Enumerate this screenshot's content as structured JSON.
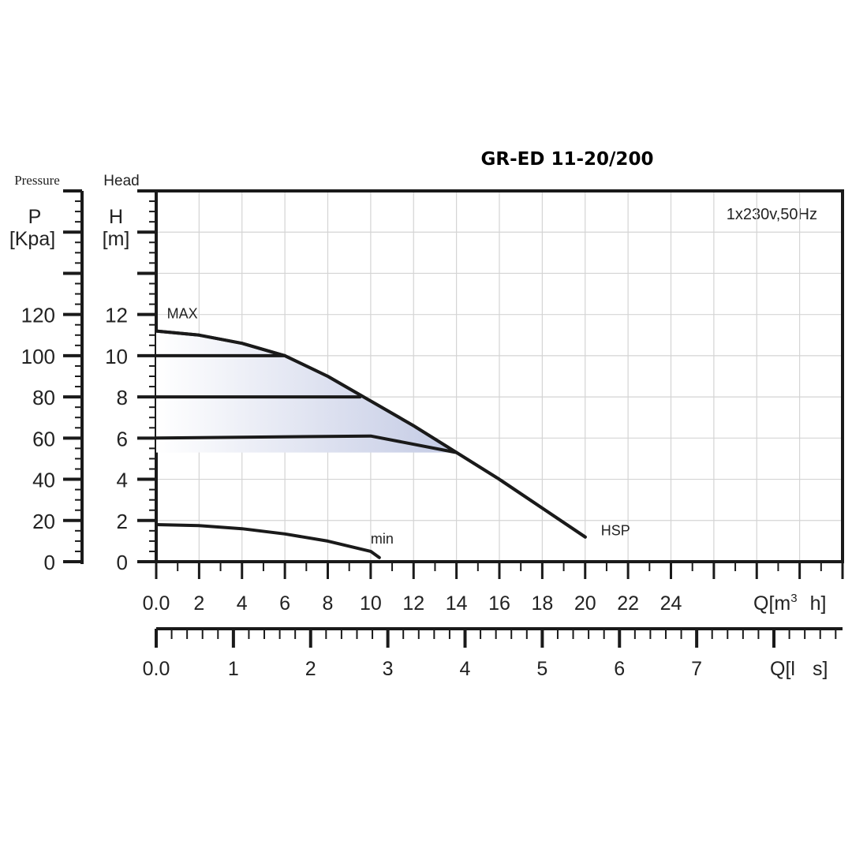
{
  "chart_data": {
    "type": "line",
    "title": "GR-ED 11-20/200",
    "supply_label": "1x230v,50Hz",
    "pressure_axis": {
      "caption": "Pressure",
      "symbol": "P",
      "unit": "[Kpa]",
      "ticks": [
        "0",
        "20",
        "40",
        "60",
        "80",
        "100",
        "120"
      ]
    },
    "head_axis": {
      "caption": "Head",
      "symbol": "H",
      "unit": "[m]",
      "ticks": [
        "0",
        "2",
        "4",
        "6",
        "8",
        "10",
        "12"
      ],
      "ylim": [
        0,
        18
      ]
    },
    "flow_m3h_axis": {
      "ticks": [
        "0.0",
        "2",
        "4",
        "6",
        "8",
        "10",
        "12",
        "14",
        "16",
        "18",
        "20",
        "22",
        "24"
      ],
      "label_q": "Q",
      "label_unit": "[m",
      "label_sup": "3",
      "label_h": "h]",
      "xlim": [
        0,
        32
      ]
    },
    "flow_ls_axis": {
      "ticks": [
        "0.0",
        "1",
        "2",
        "3",
        "4",
        "5",
        "6",
        "7"
      ],
      "label_q": "Q",
      "label_unit": "[l",
      "label_s": "s]"
    },
    "series": [
      {
        "name": "MAX",
        "x": [
          0,
          2,
          4,
          6,
          8,
          10,
          12,
          14,
          16,
          18,
          20
        ],
        "y": [
          11.2,
          11.0,
          10.6,
          10.0,
          9.0,
          7.8,
          6.6,
          5.3,
          4.0,
          2.6,
          1.2
        ]
      },
      {
        "name": "HSP",
        "x": [
          0,
          2,
          4,
          6,
          8,
          10,
          12,
          14,
          16,
          18,
          20
        ],
        "y": [
          11.2,
          11.0,
          10.6,
          10.0,
          9.0,
          7.8,
          6.6,
          5.3,
          4.0,
          2.6,
          1.2
        ]
      },
      {
        "name": "min",
        "x": [
          0,
          2,
          4,
          6,
          8,
          10,
          10.4
        ],
        "y": [
          1.8,
          1.75,
          1.6,
          1.35,
          1.0,
          0.5,
          0.2
        ]
      },
      {
        "x": [
          0,
          6
        ],
        "y": [
          10,
          10
        ]
      },
      {
        "x": [
          0,
          9.5
        ],
        "y": [
          8,
          8
        ]
      },
      {
        "x": [
          0,
          10,
          14
        ],
        "y": [
          6,
          6.1,
          5.3
        ]
      }
    ],
    "colors": {
      "lines": "#1a1a1a",
      "grid": "#d4d4d4",
      "shade": "#c7cde6"
    }
  }
}
